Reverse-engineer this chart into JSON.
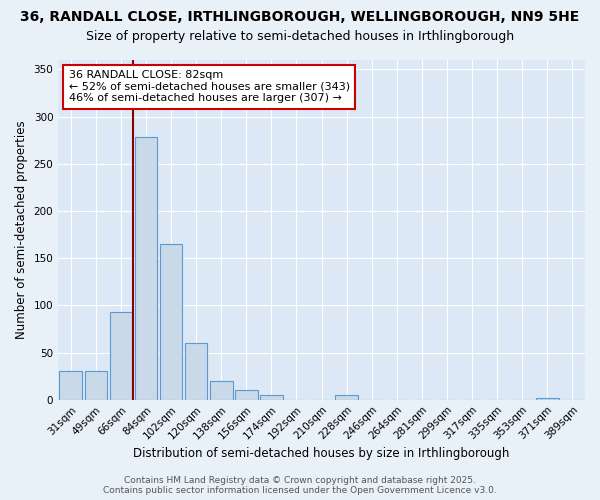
{
  "title_line1": "36, RANDALL CLOSE, IRTHLINGBOROUGH, WELLINGBOROUGH, NN9 5HE",
  "title_line2": "Size of property relative to semi-detached houses in Irthlingborough",
  "xlabel": "Distribution of semi-detached houses by size in Irthlingborough",
  "ylabel": "Number of semi-detached properties",
  "categories": [
    "31sqm",
    "49sqm",
    "66sqm",
    "84sqm",
    "102sqm",
    "120sqm",
    "138sqm",
    "156sqm",
    "174sqm",
    "192sqm",
    "210sqm",
    "228sqm",
    "246sqm",
    "264sqm",
    "281sqm",
    "299sqm",
    "317sqm",
    "335sqm",
    "353sqm",
    "371sqm",
    "389sqm"
  ],
  "values": [
    30,
    30,
    93,
    278,
    165,
    60,
    20,
    10,
    5,
    0,
    0,
    5,
    0,
    0,
    0,
    0,
    0,
    0,
    0,
    2,
    0
  ],
  "bar_color": "#c9d9e8",
  "bar_edge_color": "#5b9bd5",
  "vline_x": 2.5,
  "vline_color": "#8b0000",
  "annotation_title": "36 RANDALL CLOSE: 82sqm",
  "annotation_line2": "← 52% of semi-detached houses are smaller (343)",
  "annotation_line3": "46% of semi-detached houses are larger (307) →",
  "annotation_box_color": "#ffffff",
  "annotation_border_color": "#cc0000",
  "ylim": [
    0,
    360
  ],
  "yticks": [
    0,
    50,
    100,
    150,
    200,
    250,
    300,
    350
  ],
  "plot_bg_color": "#dce8f5",
  "fig_bg_color": "#e8f0f8",
  "footer_line1": "Contains HM Land Registry data © Crown copyright and database right 2025.",
  "footer_line2": "Contains public sector information licensed under the Open Government Licence v3.0.",
  "title_fontsize": 10,
  "subtitle_fontsize": 9,
  "axis_label_fontsize": 8.5,
  "tick_fontsize": 7.5,
  "annotation_fontsize": 8,
  "footer_fontsize": 6.5
}
